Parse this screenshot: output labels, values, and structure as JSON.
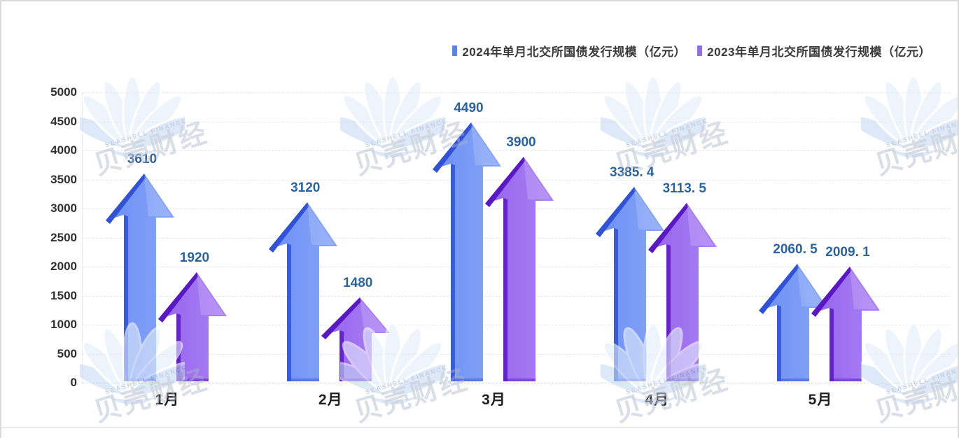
{
  "page": {
    "background": "#ffffff",
    "border_color": "#d9d9d9"
  },
  "watermark": {
    "brand_cn": "贝壳财经",
    "brand_en": "SEASHELL FINANCE",
    "shell_color_inner": "#e3eefb",
    "shell_color_outer": "#c7dcf4"
  },
  "legend": {
    "items": [
      {
        "label": "2024年单月北交所国债发行规模（亿元）",
        "color": "#5b82e4"
      },
      {
        "label": "2023年单月北交所国债发行规模（亿元）",
        "color": "#8f6fe2"
      }
    ]
  },
  "chart_data": {
    "type": "bar",
    "variant": "3d-arrow-bars",
    "title": "",
    "categories": [
      "1月",
      "2月",
      "3月",
      "4月",
      "5月"
    ],
    "series": [
      {
        "name": "2024年单月北交所国债发行规模（亿元）",
        "values": [
          3610,
          3120,
          4490,
          3385.4,
          2060.5
        ],
        "fill": "#6a8ef3",
        "fill_light": "#88a6f8",
        "edge": "#3152d4",
        "legend_color": "#5b82e4"
      },
      {
        "name": "2023年单月北交所国债发行规模（亿元）",
        "values": [
          1920,
          1480,
          3900,
          3113.5,
          2009.1
        ],
        "fill": "#9463ec",
        "fill_light": "#ab81f4",
        "edge": "#5a18c2",
        "legend_color": "#8f6fe2"
      }
    ],
    "ylim": [
      0,
      5000
    ],
    "yticks": [
      0,
      500,
      1000,
      1500,
      2000,
      2500,
      3000,
      3500,
      4000,
      4500,
      5000
    ],
    "grid": "dashed-horizontal",
    "legend_position": "top-right",
    "data_label_color": "#2d639b",
    "axis_label_color": "#2f2f2f",
    "xlabel": "",
    "ylabel": ""
  }
}
